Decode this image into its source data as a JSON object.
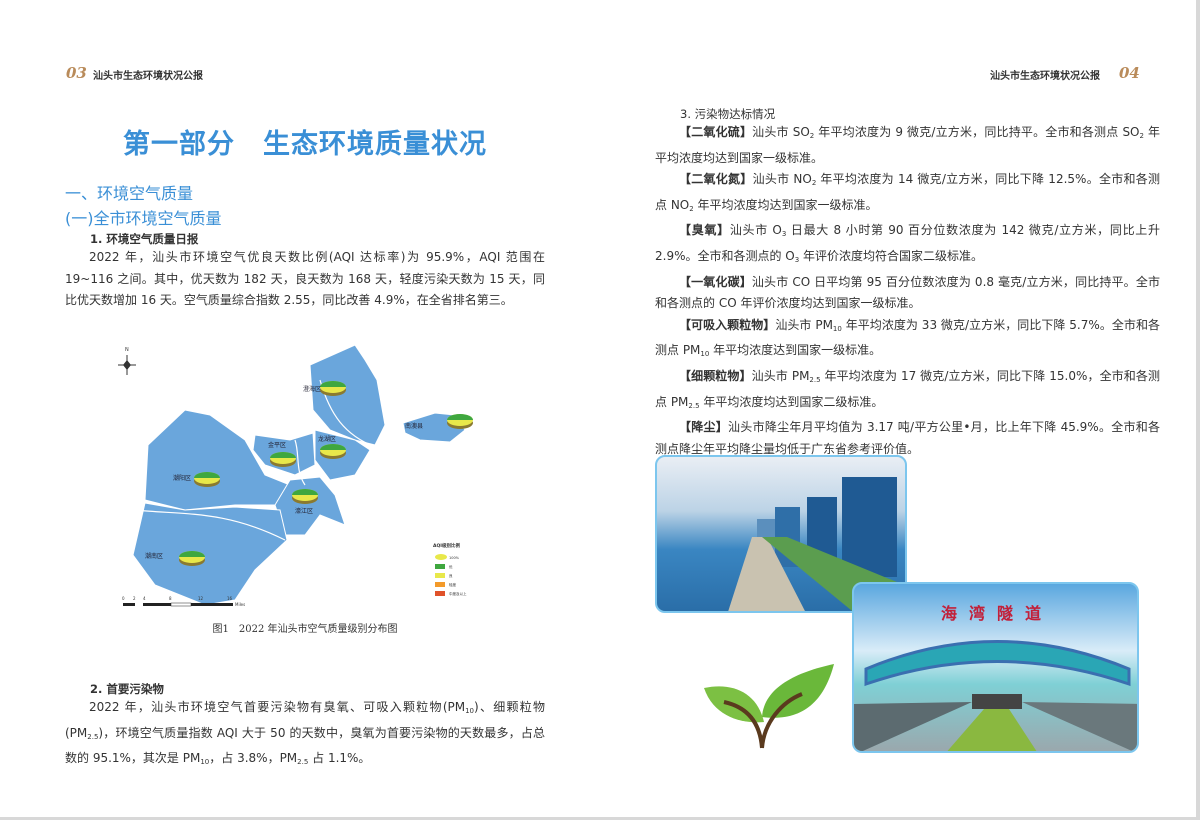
{
  "header": {
    "left_page": "03",
    "left_title": "汕头市生态环境状况公报",
    "right_title": "汕头市生态环境状况公报",
    "right_page": "04"
  },
  "title": "第一部分　生态环境质量状况",
  "section1": "一、环境空气质量",
  "section1_1": "(一)全市环境空气质量",
  "sub1": {
    "heading": "1. 环境空气质量日报",
    "paragraphs": [
      [
        {
          "t": "2022 年，汕头市环境空气优良天数比例(AQI 达标率)为 95.9%，AQI 范围在 19~116 之间。其中，优天数为 182 天，良天数为 168 天，轻度污染天数为 15 天，同比优天数增加 16 天。空气质量综合指数 2.55，同比改善 4.9%，在全省排名第三。"
        }
      ]
    ]
  },
  "map": {
    "districts": [
      "澄海区",
      "南澳县",
      "金平区",
      "龙湖区",
      "潮阳区",
      "濠江区",
      "潮南区"
    ],
    "north": "N",
    "legend": {
      "title": "AQI级别比例",
      "items": [
        "100%",
        "优",
        "良",
        "轻度",
        "中度及以上"
      ],
      "colors": [
        "#3fa73f",
        "#e8e84a",
        "#f39a2a",
        "#e0522a"
      ]
    },
    "scale": [
      "0",
      "2",
      "4",
      "8",
      "12",
      "16",
      "Miles"
    ],
    "land_color": "#6aa6dc",
    "caption": "图1　2022 年汕头市空气质量级别分布图"
  },
  "sub2": {
    "heading": "2. 首要污染物",
    "paragraphs": [
      [
        {
          "t": "2022 年，汕头市环境空气首要污染物有臭氧、可吸入颗粒物(PM"
        },
        {
          "t": "10",
          "s": 1
        },
        {
          "t": ")、细颗粒物(PM"
        },
        {
          "t": "2.5",
          "s": 1
        },
        {
          "t": ")，环境空气质量指数 AQI 大于 50 的天数中，臭氧为首要污染物的天数最多，占总数的 95.1%，其次是 PM"
        },
        {
          "t": "10",
          "s": 1
        },
        {
          "t": "，占 3.8%，PM"
        },
        {
          "t": "2.5",
          "s": 1
        },
        {
          "t": " 占 1.1%。"
        }
      ]
    ]
  },
  "sub3": {
    "heading": "3. 污染物达标情况",
    "paragraphs": [
      [
        {
          "t": "【二氧化硫】",
          "b": 1
        },
        {
          "t": "汕头市 SO"
        },
        {
          "t": "2",
          "s": 1
        },
        {
          "t": " 年平均浓度为 9 微克/立方米，同比持平。全市和各测点 SO"
        },
        {
          "t": "2",
          "s": 1
        },
        {
          "t": " 年平均浓度均达到国家一级标准。"
        }
      ],
      [
        {
          "t": "【二氧化氮】",
          "b": 1
        },
        {
          "t": "汕头市 NO"
        },
        {
          "t": "2",
          "s": 1
        },
        {
          "t": " 年平均浓度为 14 微克/立方米，同比下降 12.5%。全市和各测点 NO"
        },
        {
          "t": "2",
          "s": 1
        },
        {
          "t": " 年平均浓度均达到国家一级标准。"
        }
      ],
      [
        {
          "t": "【臭氧】",
          "b": 1
        },
        {
          "t": "汕头市 O"
        },
        {
          "t": "3",
          "s": 1
        },
        {
          "t": " 日最大 8 小时第 90 百分位数浓度为 142 微克/立方米，同比上升 2.9%。全市和各测点的 O"
        },
        {
          "t": "3",
          "s": 1
        },
        {
          "t": " 年评价浓度均符合国家二级标准。"
        }
      ],
      [
        {
          "t": "【一氧化碳】",
          "b": 1
        },
        {
          "t": "汕头市 CO 日平均第 95 百分位数浓度为 0.8 毫克/立方米，同比持平。全市和各测点的 CO 年评价浓度均达到国家一级标准。"
        }
      ],
      [
        {
          "t": "【可吸入颗粒物】",
          "b": 1
        },
        {
          "t": "汕头市 PM"
        },
        {
          "t": "10",
          "s": 1
        },
        {
          "t": " 年平均浓度为 33 微克/立方米，同比下降 5.7%。全市和各测点 PM"
        },
        {
          "t": "10",
          "s": 1
        },
        {
          "t": " 年平均浓度达到国家一级标准。"
        }
      ],
      [
        {
          "t": "【细颗粒物】",
          "b": 1
        },
        {
          "t": "汕头市 PM"
        },
        {
          "t": "2.5",
          "s": 1
        },
        {
          "t": " 年平均浓度为 17 微克/立方米，同比下降 15.0%，全市和各测点 PM"
        },
        {
          "t": "2.5",
          "s": 1
        },
        {
          "t": " 年平均浓度均达到国家二级标准。"
        }
      ],
      [
        {
          "t": "【降尘】",
          "b": 1
        },
        {
          "t": "汕头市降尘年月平均值为 3.17 吨/平方公里•月，比上年下降 45.9%。全市和各测点降尘年平均降尘量均低于广东省参考评价值。"
        }
      ]
    ]
  },
  "photos": {
    "tunnel_sign": "海湾隧道"
  }
}
